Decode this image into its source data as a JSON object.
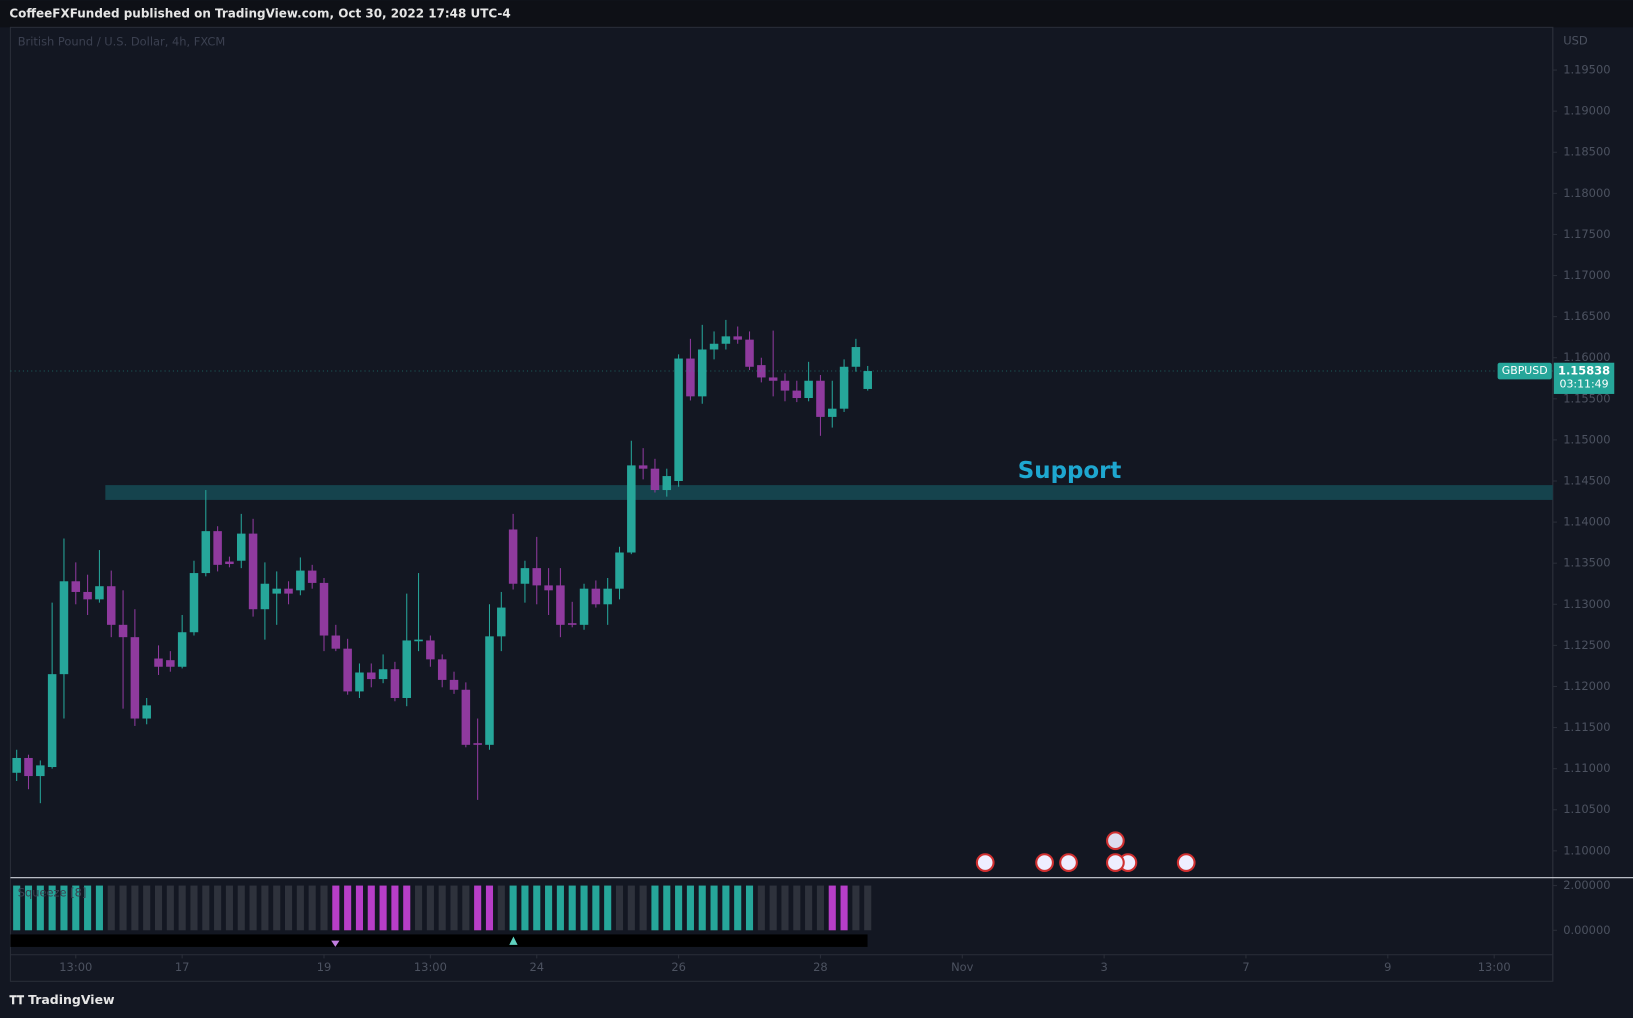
{
  "header": {
    "text": "CoffeeFXFunded published on TradingView.com, Oct 30, 2022 17:48 UTC-4"
  },
  "footer": {
    "brand": "TradingView"
  },
  "chart_data": [
    {
      "type": "candlestick",
      "title": "British Pound / U.S. Dollar, 4h, FXCM",
      "symbol": "GBPUSD",
      "currency": "USD",
      "last_price": {
        "value": 1.15838,
        "label": "1.15838"
      },
      "countdown": "03:11:49",
      "up_color": "#26a69a",
      "down_color": "#8f3a9e",
      "open": [
        1.1095,
        1.1113,
        1.1091,
        1.1102,
        1.1215,
        1.1328,
        1.1315,
        1.1306,
        1.1322,
        1.1275,
        1.126,
        1.1161,
        1.1234,
        1.1232,
        1.1224,
        1.1266,
        1.1338,
        1.1389,
        1.1352,
        1.1353,
        1.1386,
        1.1294,
        1.1313,
        1.1319,
        1.1317,
        1.1341,
        1.1326,
        1.1262,
        1.1246,
        1.1194,
        1.1217,
        1.1209,
        1.1221,
        1.1186,
        1.1255,
        1.1256,
        1.1233,
        1.1208,
        1.1196,
        1.1131,
        1.1129,
        1.1261,
        1.1391,
        1.1325,
        1.1344,
        1.1323,
        1.1323,
        1.1277,
        1.1275,
        1.1319,
        1.13,
        1.1319,
        1.1363,
        1.1469,
        1.1465,
        1.1439,
        1.145,
        1.1599,
        1.1553,
        1.161,
        1.1617,
        1.1626,
        1.1622,
        1.1591,
        1.1576,
        1.1572,
        1.156,
        1.1551,
        1.1572,
        1.1528,
        1.1538,
        1.1589,
        1.1562
      ],
      "high": [
        1.1123,
        1.1117,
        1.111,
        1.1302,
        1.138,
        1.1351,
        1.1336,
        1.1366,
        1.1341,
        1.1317,
        1.1294,
        1.1186,
        1.125,
        1.1243,
        1.1287,
        1.1353,
        1.1439,
        1.1395,
        1.1358,
        1.141,
        1.1404,
        1.1351,
        1.134,
        1.1328,
        1.1357,
        1.1348,
        1.1332,
        1.1275,
        1.1258,
        1.1228,
        1.1228,
        1.1239,
        1.123,
        1.1313,
        1.1338,
        1.1262,
        1.1239,
        1.1218,
        1.1205,
        1.1161,
        1.13,
        1.1315,
        1.141,
        1.1353,
        1.1382,
        1.1344,
        1.1344,
        1.1303,
        1.1325,
        1.1329,
        1.1332,
        1.137,
        1.1499,
        1.149,
        1.1477,
        1.1465,
        1.1604,
        1.1623,
        1.164,
        1.1632,
        1.1646,
        1.1638,
        1.1632,
        1.16,
        1.1633,
        1.1581,
        1.1572,
        1.1595,
        1.1579,
        1.1572,
        1.1598,
        1.1623,
        1.159
      ],
      "low": [
        1.1085,
        1.1075,
        1.1058,
        1.11,
        1.1161,
        1.13,
        1.1287,
        1.1302,
        1.126,
        1.1173,
        1.1152,
        1.1154,
        1.1214,
        1.1218,
        1.1222,
        1.1262,
        1.1334,
        1.134,
        1.1345,
        1.1344,
        1.1285,
        1.1257,
        1.1275,
        1.13,
        1.1311,
        1.1319,
        1.1243,
        1.1243,
        1.119,
        1.1186,
        1.1199,
        1.1204,
        1.1182,
        1.1176,
        1.1243,
        1.1224,
        1.1199,
        1.1191,
        1.1126,
        1.1062,
        1.1123,
        1.1243,
        1.1318,
        1.1302,
        1.13,
        1.1287,
        1.126,
        1.1272,
        1.1269,
        1.1296,
        1.1275,
        1.1306,
        1.1361,
        1.1452,
        1.1436,
        1.1431,
        1.1443,
        1.1548,
        1.1544,
        1.1598,
        1.161,
        1.1617,
        1.1585,
        1.157,
        1.1553,
        1.1547,
        1.1546,
        1.1547,
        1.1505,
        1.1515,
        1.1534,
        1.1583,
        1.156
      ],
      "close": [
        1.1113,
        1.1091,
        1.1104,
        1.1215,
        1.1328,
        1.1315,
        1.1306,
        1.1322,
        1.1275,
        1.126,
        1.1161,
        1.1177,
        1.1224,
        1.1224,
        1.1266,
        1.1338,
        1.1389,
        1.1348,
        1.1349,
        1.1386,
        1.1294,
        1.1325,
        1.1319,
        1.1313,
        1.1341,
        1.1326,
        1.1262,
        1.1246,
        1.1194,
        1.1217,
        1.1209,
        1.1221,
        1.1186,
        1.1256,
        1.1257,
        1.1233,
        1.1208,
        1.1196,
        1.1129,
        1.1129,
        1.1261,
        1.1296,
        1.1325,
        1.1344,
        1.1323,
        1.1317,
        1.1275,
        1.1275,
        1.1319,
        1.13,
        1.1319,
        1.1363,
        1.1469,
        1.1465,
        1.1439,
        1.1456,
        1.1599,
        1.1553,
        1.161,
        1.1617,
        1.1626,
        1.1622,
        1.1589,
        1.1576,
        1.1572,
        1.156,
        1.1551,
        1.1572,
        1.1528,
        1.1538,
        1.1589,
        1.1613,
        1.15838
      ],
      "ylim": [
        1.0968,
        1.2002
      ],
      "yticks": [
        {
          "value": 1.195,
          "label": "1.19500"
        },
        {
          "value": 1.19,
          "label": "1.19000"
        },
        {
          "value": 1.185,
          "label": "1.18500"
        },
        {
          "value": 1.18,
          "label": "1.18000"
        },
        {
          "value": 1.175,
          "label": "1.17500"
        },
        {
          "value": 1.17,
          "label": "1.17000"
        },
        {
          "value": 1.165,
          "label": "1.16500"
        },
        {
          "value": 1.16,
          "label": "1.16000"
        },
        {
          "value": 1.155,
          "label": "1.15500"
        },
        {
          "value": 1.15,
          "label": "1.15000"
        },
        {
          "value": 1.145,
          "label": "1.14500"
        },
        {
          "value": 1.14,
          "label": "1.14000"
        },
        {
          "value": 1.135,
          "label": "1.13500"
        },
        {
          "value": 1.13,
          "label": "1.13000"
        },
        {
          "value": 1.125,
          "label": "1.12500"
        },
        {
          "value": 1.12,
          "label": "1.12000"
        },
        {
          "value": 1.115,
          "label": "1.11500"
        },
        {
          "value": 1.11,
          "label": "1.11000"
        },
        {
          "value": 1.105,
          "label": "1.10500"
        },
        {
          "value": 1.1,
          "label": "1.10000"
        }
      ],
      "xlim": [
        -0.53,
        129.96
      ],
      "xticks": [
        {
          "value": 5,
          "label": "13:00"
        },
        {
          "value": 14,
          "label": "17"
        },
        {
          "value": 26,
          "label": "19"
        },
        {
          "value": 35,
          "label": "13:00"
        },
        {
          "value": 44,
          "label": "24"
        },
        {
          "value": 56,
          "label": "26"
        },
        {
          "value": 68,
          "label": "28"
        },
        {
          "value": 80,
          "label": "Nov"
        },
        {
          "value": 92,
          "label": "3"
        },
        {
          "value": 104,
          "label": "7"
        },
        {
          "value": 116,
          "label": "9"
        },
        {
          "value": 125,
          "label": "13:00"
        }
      ],
      "support": {
        "label": "Support",
        "top": 1.1445,
        "bottom": 1.1427,
        "start": 8,
        "color": "#15434d",
        "label_color": "#1ea7d0"
      }
    },
    {
      "type": "bar",
      "title": "Squeeze [8]",
      "values": [
        2,
        2,
        2,
        2,
        2,
        2,
        2,
        2,
        2,
        2,
        2,
        2,
        2,
        2,
        2,
        2,
        2,
        2,
        2,
        2,
        2,
        2,
        2,
        2,
        2,
        2,
        2,
        2,
        2,
        2,
        2,
        2,
        2,
        2,
        2,
        2,
        2,
        2,
        2,
        2,
        2,
        2,
        2,
        2,
        2,
        2,
        2,
        2,
        2,
        2,
        2,
        2,
        2,
        2,
        2,
        2,
        2,
        2,
        2,
        2,
        2,
        2,
        2,
        2,
        2,
        2,
        2,
        2,
        2,
        2,
        2,
        2,
        2
      ],
      "colors": [
        "#26a69a",
        "#26a69a",
        "#26a69a",
        "#26a69a",
        "#26a69a",
        "#26a69a",
        "#26a69a",
        "#26a69a",
        "#2e323c",
        "#2e323c",
        "#2e323c",
        "#2e323c",
        "#2e323c",
        "#2e323c",
        "#2e323c",
        "#2e323c",
        "#2e323c",
        "#2e323c",
        "#2e323c",
        "#2e323c",
        "#2e323c",
        "#2e323c",
        "#2e323c",
        "#2e323c",
        "#2e323c",
        "#2e323c",
        "#2e323c",
        "#b73ec8",
        "#b73ec8",
        "#b73ec8",
        "#b73ec8",
        "#b73ec8",
        "#b73ec8",
        "#b73ec8",
        "#2e323c",
        "#2e323c",
        "#2e323c",
        "#2e323c",
        "#2e323c",
        "#b73ec8",
        "#b73ec8",
        "#2e323c",
        "#26a69a",
        "#26a69a",
        "#26a69a",
        "#26a69a",
        "#26a69a",
        "#26a69a",
        "#26a69a",
        "#26a69a",
        "#26a69a",
        "#2e323c",
        "#2e323c",
        "#2e323c",
        "#26a69a",
        "#26a69a",
        "#26a69a",
        "#26a69a",
        "#26a69a",
        "#26a69a",
        "#26a69a",
        "#26a69a",
        "#26a69a",
        "#2e323c",
        "#2e323c",
        "#2e323c",
        "#2e323c",
        "#2e323c",
        "#2e323c",
        "#b73ec8",
        "#b73ec8",
        "#2e323c",
        "#2e323c"
      ],
      "ylim": [
        -1.07,
        2.33
      ],
      "yticks": [
        {
          "value": 2,
          "label": "2.00000"
        },
        {
          "value": 0,
          "label": "0.00000"
        }
      ]
    }
  ]
}
